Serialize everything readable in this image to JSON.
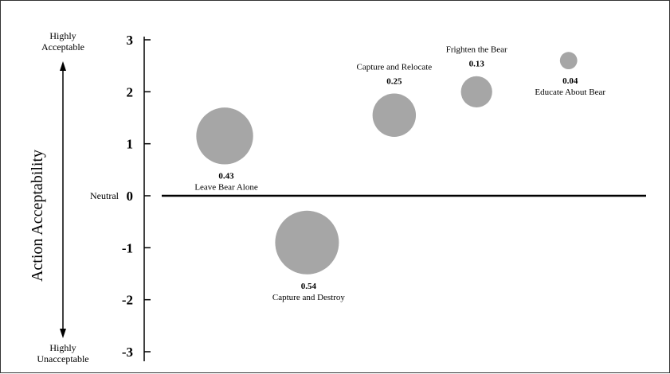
{
  "chart_data": {
    "type": "scatter",
    "title": "",
    "xlabel": "",
    "ylabel": "Action Acceptability",
    "ylim": [
      -3,
      3
    ],
    "yticks": [
      "-3",
      "-2",
      "-1",
      "0",
      "1",
      "2",
      "3"
    ],
    "y_annotations": {
      "top": "Highly Acceptable",
      "middle": "Neutral",
      "bottom": "Highly Unacceptable"
    },
    "points": [
      {
        "label": "Leave Bear Alone",
        "value": "0.43",
        "x": 0.13,
        "y": 1.15
      },
      {
        "label": "Capture and Destroy",
        "value": "0.54",
        "x": 0.3,
        "y": -0.9
      },
      {
        "label": "Capture and Relocate",
        "value": "0.25",
        "x": 0.48,
        "y": 1.55
      },
      {
        "label": "Frighten the Bear",
        "value": "0.13",
        "x": 0.65,
        "y": 2.0
      },
      {
        "label": "Educate About Bear",
        "value": "0.04",
        "x": 0.84,
        "y": 2.6
      }
    ],
    "colors": {
      "bubble": "#a6a6a6",
      "axis": "#000000"
    }
  }
}
